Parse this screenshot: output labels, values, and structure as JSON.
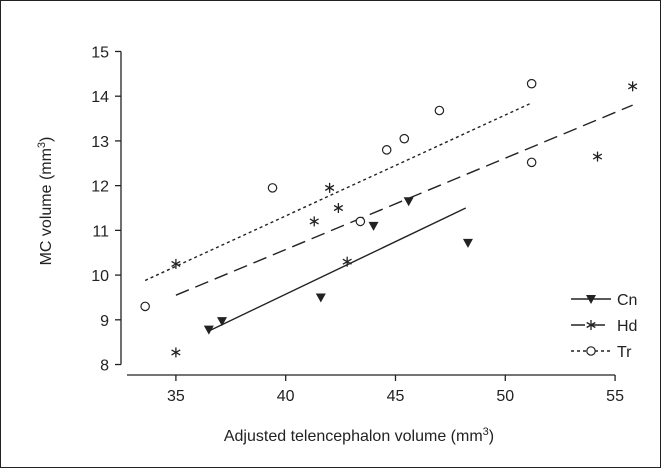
{
  "chart_data": {
    "type": "scatter",
    "title": "",
    "xlabel": "Adjusted telencephalon volume (mm",
    "xlabel_sup": "3",
    "xlabel_close": ")",
    "ylabel": "MC volume (mm",
    "ylabel_sup": "3",
    "ylabel_close": ")",
    "xlim": [
      32.5,
      57
    ],
    "ylim": [
      7.9,
      15.1
    ],
    "xticks": [
      35,
      40,
      45,
      50,
      55
    ],
    "yticks": [
      8,
      9,
      10,
      11,
      12,
      13,
      14,
      15
    ],
    "grid": false,
    "legend_position": "bottom-right",
    "series": [
      {
        "name": "Cn",
        "marker": "filled-triangle-down",
        "line_style": "solid",
        "points": [
          [
            36.5,
            8.78
          ],
          [
            37.1,
            8.97
          ],
          [
            41.6,
            9.5
          ],
          [
            44.0,
            11.1
          ],
          [
            45.6,
            11.65
          ],
          [
            48.3,
            10.72
          ]
        ],
        "fit": [
          [
            36.5,
            8.75
          ],
          [
            48.2,
            11.5
          ]
        ]
      },
      {
        "name": "Hd",
        "marker": "asterisk",
        "line_style": "long-dash",
        "points": [
          [
            35.0,
            8.27
          ],
          [
            35.0,
            10.25
          ],
          [
            41.3,
            11.2
          ],
          [
            42.0,
            11.95
          ],
          [
            42.4,
            11.5
          ],
          [
            42.8,
            10.3
          ],
          [
            54.2,
            12.65
          ],
          [
            55.8,
            14.22
          ]
        ],
        "fit": [
          [
            35.0,
            9.55
          ],
          [
            55.8,
            13.8
          ]
        ]
      },
      {
        "name": "Tr",
        "marker": "open-circle",
        "line_style": "short-dash",
        "points": [
          [
            33.6,
            9.3
          ],
          [
            39.4,
            11.95
          ],
          [
            43.4,
            11.2
          ],
          [
            44.6,
            12.8
          ],
          [
            45.4,
            13.05
          ],
          [
            47.0,
            13.68
          ],
          [
            51.2,
            14.28
          ],
          [
            51.2,
            12.52
          ]
        ],
        "fit": [
          [
            33.6,
            9.88
          ],
          [
            51.2,
            13.85
          ]
        ]
      }
    ]
  }
}
